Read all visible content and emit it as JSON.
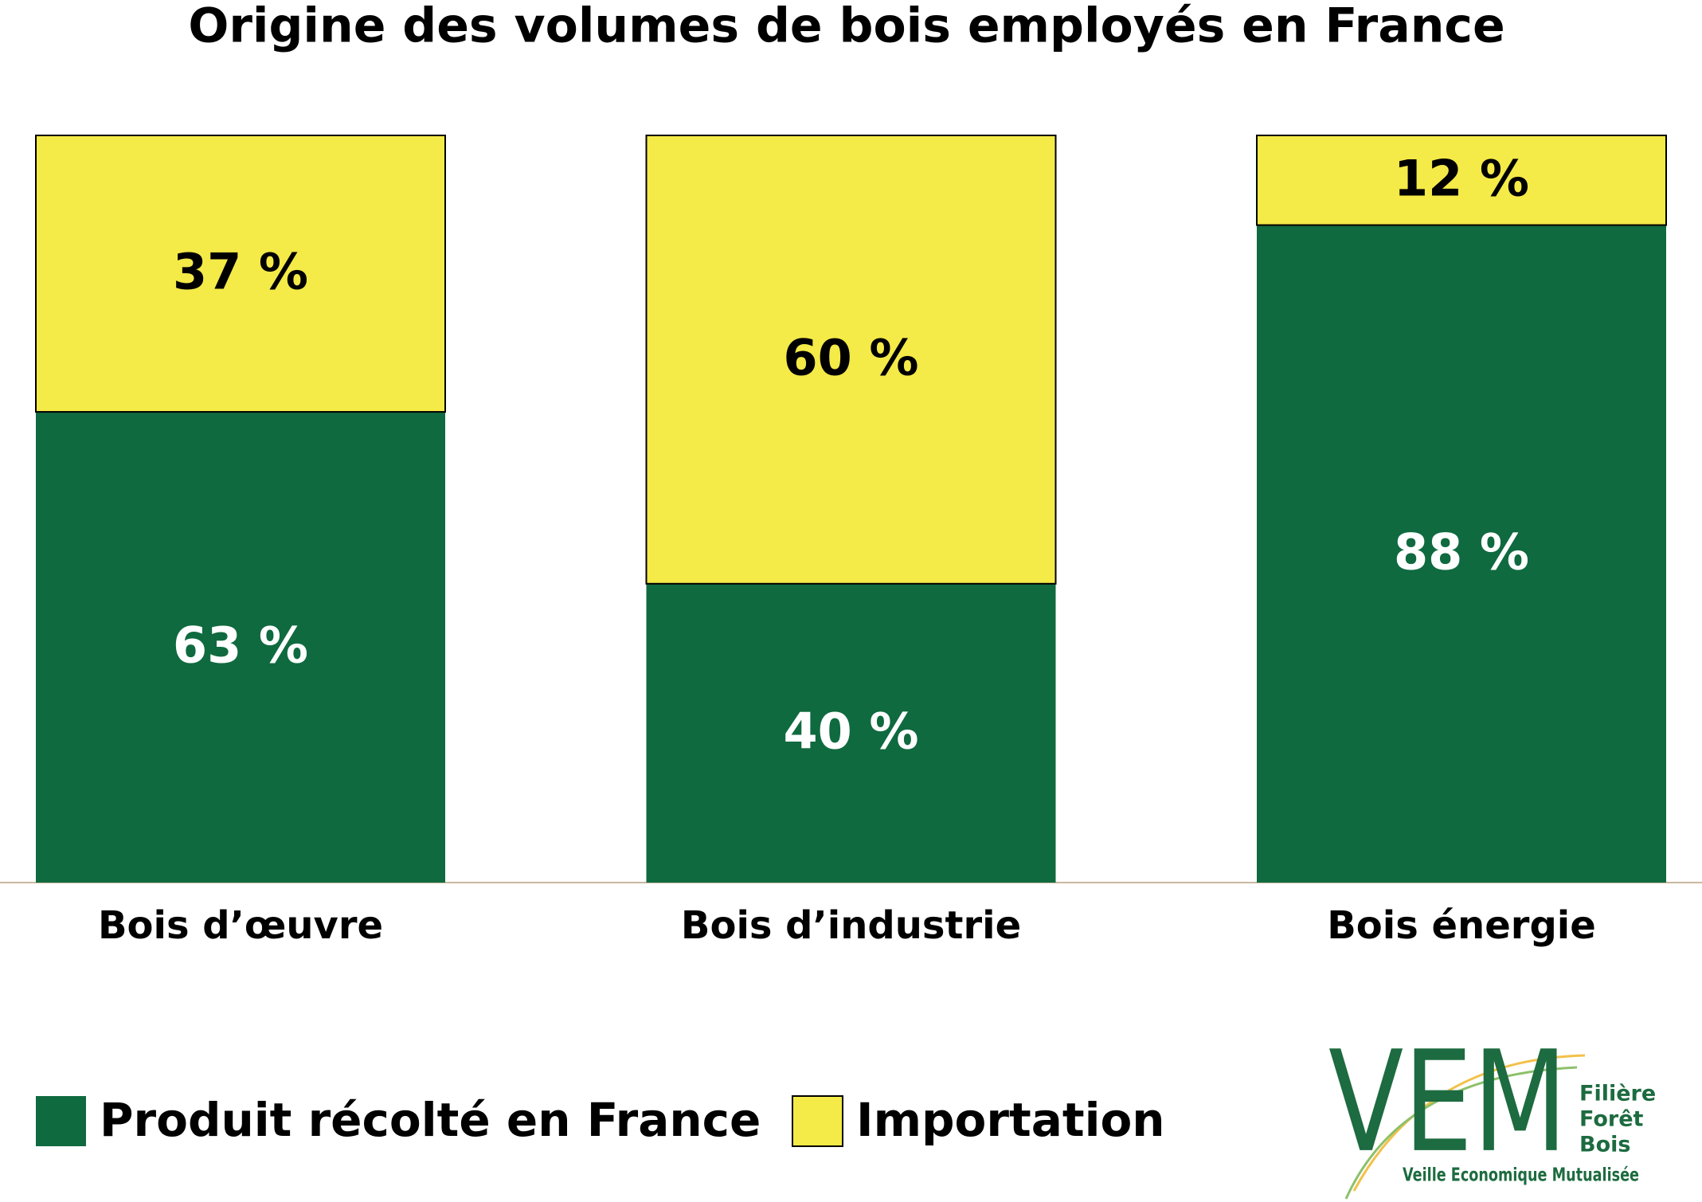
{
  "chart_data": {
    "type": "stacked_bar",
    "title": "Origine des volumes de bois employés en France",
    "categories": [
      "Bois d’œuvre",
      "Bois d’industrie",
      "Bois énergie"
    ],
    "series": [
      {
        "name": "Produit récolté en France",
        "color": "#0f6a3f",
        "values": [
          63,
          40,
          88
        ],
        "value_labels": [
          "63 %",
          "40 %",
          "88 %"
        ]
      },
      {
        "name": "Importation",
        "color": "#f4ea48",
        "values": [
          37,
          60,
          12
        ],
        "value_labels": [
          "37 %",
          "60 %",
          "12 %"
        ]
      }
    ]
  },
  "logo": {
    "mark": "VEM",
    "lines": [
      "Filière",
      "Forêt",
      "Bois"
    ],
    "tagline": "Veille Economique Mutualisée"
  }
}
